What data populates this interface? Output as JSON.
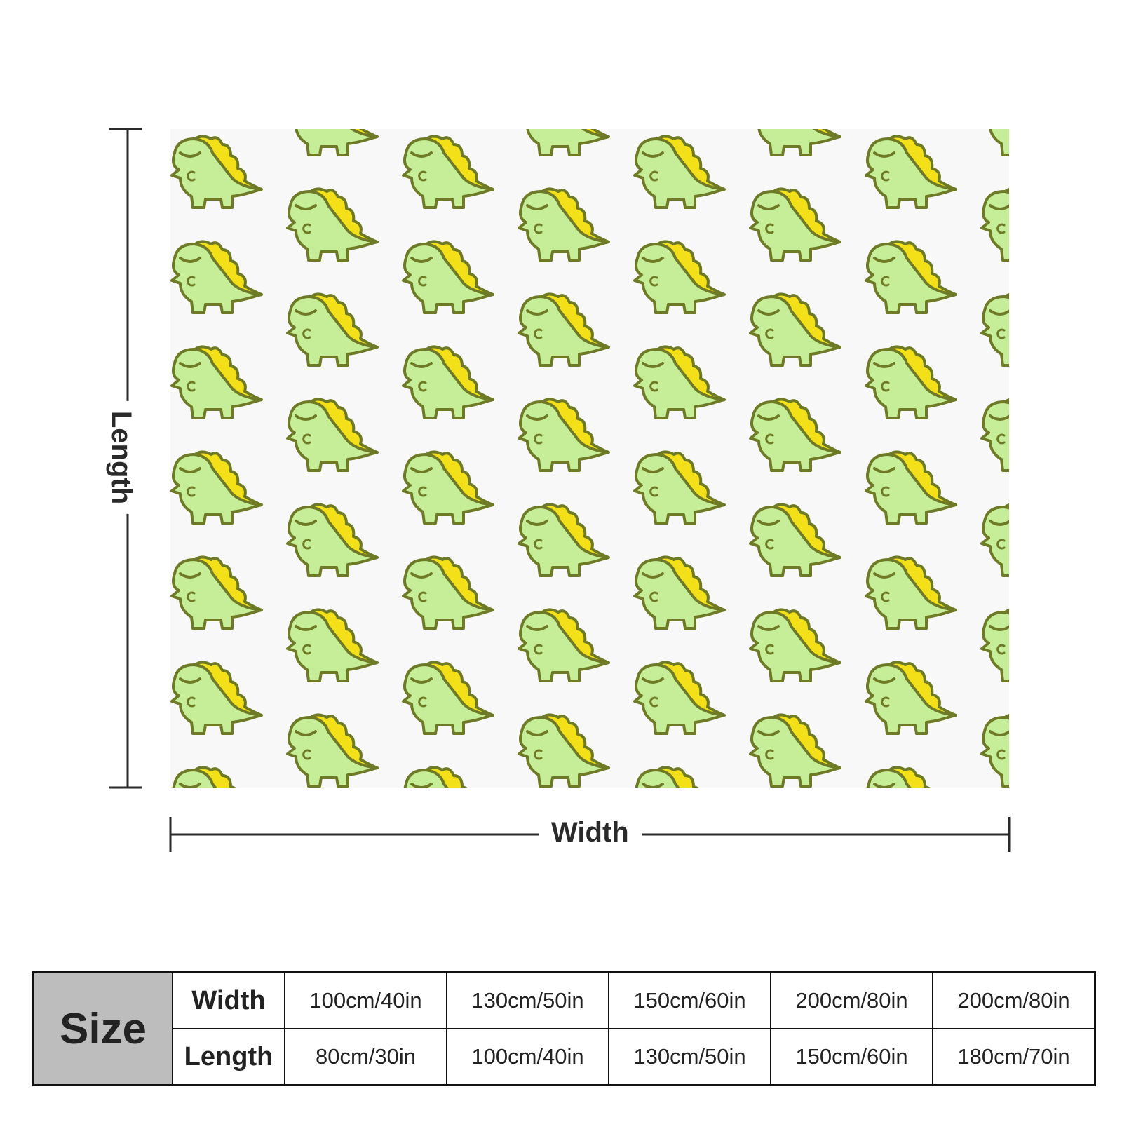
{
  "dimension_labels": {
    "length": "Length",
    "width": "Width"
  },
  "size_table": {
    "title": "Size",
    "rows": [
      [
        "Width",
        "100cm/40in",
        "130cm/50in",
        "150cm/60in",
        "200cm/80in",
        "200cm/80in"
      ],
      [
        "Length",
        "80cm/30in",
        "100cm/40in",
        "130cm/50in",
        "150cm/60in",
        "180cm/70in"
      ]
    ]
  }
}
